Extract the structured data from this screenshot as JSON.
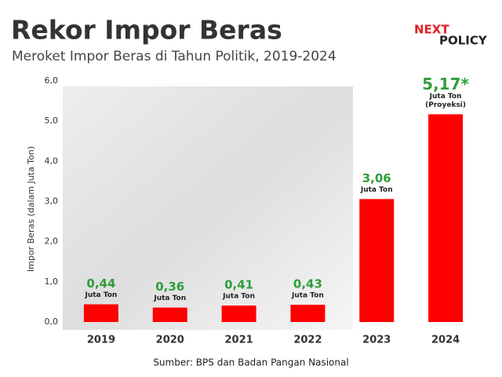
{
  "chart_data": {
    "type": "bar",
    "title": "Rekor Impor Beras",
    "subtitle": "Meroket Impor Beras di Tahun Politik, 2019-2024",
    "logo": {
      "top": "NEXT",
      "bottom": "POLICY"
    },
    "y_label": "Impor Beras (dalam Juta Ton)",
    "source": "Sumber: BPS dan Badan Pangan Nasional",
    "categories": [
      "2019",
      "2020",
      "2021",
      "2022",
      "2023",
      "2024"
    ],
    "values": [
      0.44,
      0.36,
      0.41,
      0.43,
      3.06,
      5.17
    ],
    "value_labels": [
      "0,44",
      "0,36",
      "0,41",
      "0,43",
      "3,06",
      "5,17*"
    ],
    "unit_labels": [
      [
        "Juta Ton"
      ],
      [
        "Juta Ton"
      ],
      [
        "Juta Ton"
      ],
      [
        "Juta Ton"
      ],
      [
        "Juta Ton"
      ],
      [
        "Juta Ton",
        "(Proyeksi)"
      ]
    ],
    "color": "#ff0000",
    "label_color": "#2e9e3a",
    "ylim": [
      0,
      6
    ],
    "yticks": [
      {
        "value": 0,
        "label": "0,0"
      },
      {
        "value": 1,
        "label": "1,0"
      },
      {
        "value": 2,
        "label": "2,0"
      },
      {
        "value": 3,
        "label": "3,0"
      },
      {
        "value": 4,
        "label": "4,0"
      },
      {
        "value": 5,
        "label": "5,0"
      },
      {
        "value": 6,
        "label": "6,0"
      }
    ],
    "grid": false
  }
}
